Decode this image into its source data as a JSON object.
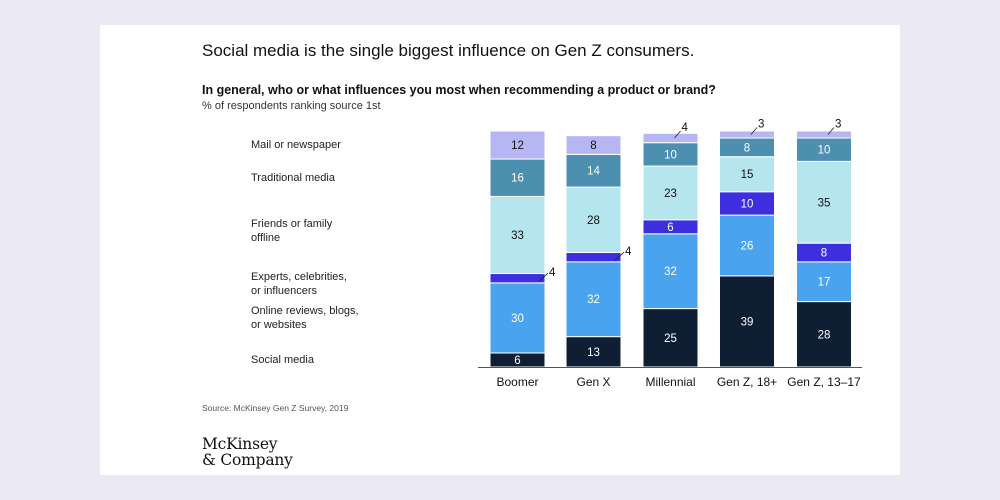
{
  "title": "Social media is the single biggest influence on Gen Z consumers.",
  "question": "In general, who or what influences you most when recommending a product or brand?",
  "subtitle": "% of respondents ranking source 1st",
  "source": "Source: McKinsey Gen Z Survey, 2019",
  "logo": {
    "line1": "McKinsey",
    "line2": "& Company"
  },
  "colors": {
    "background": "#ebe9f4",
    "card": "#ffffff",
    "Social media": "#0f1f33",
    "Online reviews, blogs, or websites": "#4aa3ef",
    "Experts, celebrities, or influencers": "#3d2ee0",
    "Friends or family offline": "#b5e6ee",
    "Traditional media": "#4d8faf",
    "Mail or newspaper": "#b6b6f4"
  },
  "legend": [
    {
      "key": "Mail or newspaper",
      "lines": [
        "Mail or newspaper"
      ]
    },
    {
      "key": "Traditional media",
      "lines": [
        "Traditional media"
      ]
    },
    {
      "key": "Friends or family offline",
      "lines": [
        "Friends or family",
        "offline"
      ]
    },
    {
      "key": "Experts, celebrities, or influencers",
      "lines": [
        "Experts, celebrities,",
        "or influencers"
      ]
    },
    {
      "key": "Online reviews, blogs, or websites",
      "lines": [
        "Online reviews, blogs,",
        "or websites"
      ]
    },
    {
      "key": "Social media",
      "lines": [
        "Social media"
      ]
    }
  ],
  "chart_data": {
    "type": "bar",
    "stacked": true,
    "categories": [
      "Boomer",
      "Gen X",
      "Millennial",
      "Gen Z, 18+",
      "Gen Z, 13–17"
    ],
    "series": [
      {
        "name": "Social media",
        "values": [
          6,
          13,
          25,
          39,
          28
        ]
      },
      {
        "name": "Online reviews, blogs, or websites",
        "values": [
          30,
          32,
          32,
          26,
          17
        ]
      },
      {
        "name": "Experts, celebrities, or influencers",
        "values": [
          4,
          4,
          6,
          10,
          8
        ]
      },
      {
        "name": "Friends or family offline",
        "values": [
          33,
          28,
          23,
          15,
          35
        ]
      },
      {
        "name": "Traditional media",
        "values": [
          16,
          14,
          10,
          8,
          10
        ]
      },
      {
        "name": "Mail or newspaper",
        "values": [
          12,
          8,
          4,
          3,
          3
        ]
      }
    ],
    "value_labels": [
      [
        "6",
        "30",
        "4",
        "33",
        "16",
        "12"
      ],
      [
        "13",
        "32",
        "4",
        "28",
        "14",
        "8"
      ],
      [
        "25",
        "32",
        "6",
        "23",
        "10",
        "4"
      ],
      [
        "39",
        "26",
        "10",
        "15",
        "8",
        "3"
      ],
      [
        "28",
        "17",
        "8",
        "35",
        "10",
        "3"
      ]
    ],
    "ylim": [
      0,
      101
    ],
    "legend_position": "left",
    "grid": false
  }
}
